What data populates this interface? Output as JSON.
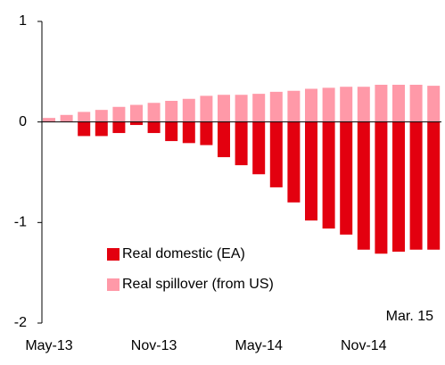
{
  "chart_data": {
    "type": "bar",
    "stacked": true,
    "categories": [
      "May-13",
      null,
      null,
      null,
      null,
      null,
      "Nov-13",
      null,
      null,
      null,
      null,
      null,
      "May-14",
      null,
      null,
      null,
      null,
      null,
      "Nov-14",
      null,
      null,
      null,
      null
    ],
    "series": [
      {
        "name": "Real domestic (EA)",
        "color": "#e3000f",
        "values": [
          0,
          0,
          -0.14,
          -0.14,
          -0.11,
          -0.03,
          -0.11,
          -0.19,
          -0.21,
          -0.23,
          -0.35,
          -0.43,
          -0.52,
          -0.65,
          -0.8,
          -0.98,
          -1.06,
          -1.12,
          -1.27,
          -1.31,
          -1.29,
          -1.27,
          -1.27
        ]
      },
      {
        "name": "Real spillover (from US)",
        "color": "#ff99a8",
        "values": [
          0.04,
          0.07,
          0.1,
          0.12,
          0.15,
          0.17,
          0.19,
          0.21,
          0.23,
          0.26,
          0.27,
          0.27,
          0.28,
          0.3,
          0.31,
          0.33,
          0.34,
          0.35,
          0.35,
          0.37,
          0.37,
          0.37,
          0.36
        ]
      }
    ],
    "ylim": [
      -2,
      1
    ],
    "yticks": [
      -2,
      -1,
      0,
      1
    ],
    "annotation": "Mar. 15",
    "legend": "lower-left"
  }
}
